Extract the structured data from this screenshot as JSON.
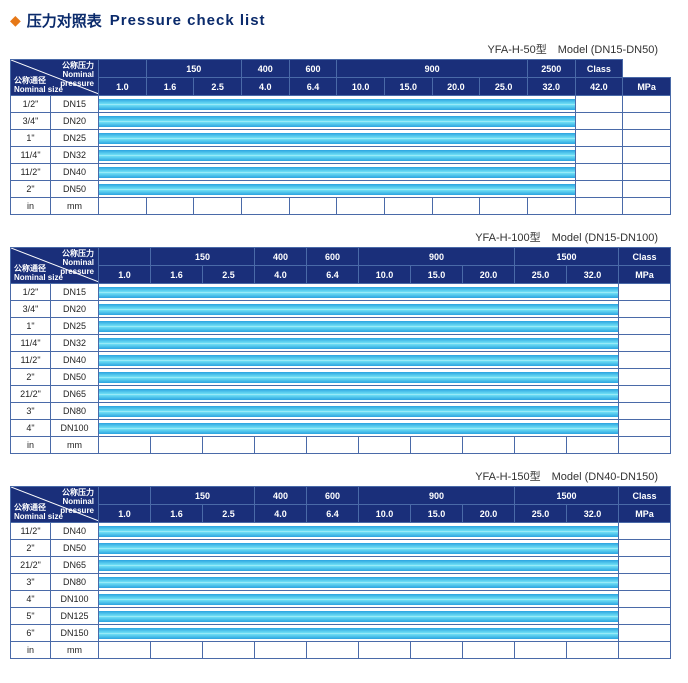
{
  "title": {
    "cn": "压力对照表",
    "en": "Pressure check list"
  },
  "colors": {
    "accent_diamond": "#e67817",
    "header_bg": "#1a2f7a",
    "border": "#4a6aa8",
    "bar_gradient": [
      "#2aa3e0",
      "#6fe0f5",
      "#b8f2fb",
      "#6fe0f5",
      "#2aa3e0"
    ],
    "title_color": "#0a2a6b"
  },
  "shared_labels": {
    "diag_top_cn": "公称压力",
    "diag_top_en1": "Nominal",
    "diag_top_en2": "pressure",
    "diag_left_cn": "公称通径",
    "diag_left_en": "Nominal size",
    "footer_in": "in",
    "footer_mm": "mm"
  },
  "tables": [
    {
      "caption": "YFA-H-50型　Model (DN15-DN50)",
      "class_headers": [
        "",
        "150",
        "",
        "400",
        "600",
        "900",
        "",
        "",
        "",
        "2500",
        "Class"
      ],
      "mpa_headers": [
        "1.0",
        "1.6",
        "2.5",
        "4.0",
        "6.4",
        "10.0",
        "15.0",
        "20.0",
        "25.0",
        "32.0",
        "42.0",
        "MPa"
      ],
      "rows": [
        {
          "in": "1/2\"",
          "dn": "DN15",
          "bar_span": 10,
          "tail": 1
        },
        {
          "in": "3/4\"",
          "dn": "DN20",
          "bar_span": 10,
          "tail": 1
        },
        {
          "in": "1\"",
          "dn": "DN25",
          "bar_span": 10,
          "tail": 1
        },
        {
          "in": "11/4\"",
          "dn": "DN32",
          "bar_span": 10,
          "tail": 1
        },
        {
          "in": "11/2\"",
          "dn": "DN40",
          "bar_span": 10,
          "tail": 1
        },
        {
          "in": "2\"",
          "dn": "DN50",
          "bar_span": 10,
          "tail": 1
        }
      ],
      "n_value_cols": 11
    },
    {
      "caption": "YFA-H-100型　Model (DN15-DN100)",
      "class_headers": [
        "",
        "150",
        "",
        "400",
        "600",
        "900",
        "",
        "",
        "1500",
        "",
        "Class"
      ],
      "mpa_headers": [
        "1.0",
        "1.6",
        "2.5",
        "4.0",
        "6.4",
        "10.0",
        "15.0",
        "20.0",
        "25.0",
        "32.0",
        "MPa"
      ],
      "rows": [
        {
          "in": "1/2\"",
          "dn": "DN15",
          "bar_span": 10,
          "tail": 0
        },
        {
          "in": "3/4\"",
          "dn": "DN20",
          "bar_span": 10,
          "tail": 0
        },
        {
          "in": "1\"",
          "dn": "DN25",
          "bar_span": 10,
          "tail": 0
        },
        {
          "in": "11/4\"",
          "dn": "DN32",
          "bar_span": 10,
          "tail": 0
        },
        {
          "in": "11/2\"",
          "dn": "DN40",
          "bar_span": 10,
          "tail": 0
        },
        {
          "in": "2\"",
          "dn": "DN50",
          "bar_span": 10,
          "tail": 0
        },
        {
          "in": "21/2\"",
          "dn": "DN65",
          "bar_span": 10,
          "tail": 0
        },
        {
          "in": "3\"",
          "dn": "DN80",
          "bar_span": 10,
          "tail": 0
        },
        {
          "in": "4\"",
          "dn": "DN100",
          "bar_span": 10,
          "tail": 0
        }
      ],
      "n_value_cols": 10
    },
    {
      "caption": "YFA-H-150型　Model (DN40-DN150)",
      "class_headers": [
        "",
        "150",
        "",
        "400",
        "600",
        "900",
        "",
        "",
        "1500",
        "",
        "Class"
      ],
      "mpa_headers": [
        "1.0",
        "1.6",
        "2.5",
        "4.0",
        "6.4",
        "10.0",
        "15.0",
        "20.0",
        "25.0",
        "32.0",
        "MPa"
      ],
      "rows": [
        {
          "in": "11/2\"",
          "dn": "DN40",
          "bar_span": 10,
          "tail": 0
        },
        {
          "in": "2\"",
          "dn": "DN50",
          "bar_span": 10,
          "tail": 0
        },
        {
          "in": "21/2\"",
          "dn": "DN65",
          "bar_span": 10,
          "tail": 0
        },
        {
          "in": "3\"",
          "dn": "DN80",
          "bar_span": 10,
          "tail": 0
        },
        {
          "in": "4\"",
          "dn": "DN100",
          "bar_span": 10,
          "tail": 0
        },
        {
          "in": "5\"",
          "dn": "DN125",
          "bar_span": 10,
          "tail": 0
        },
        {
          "in": "6\"",
          "dn": "DN150",
          "bar_span": 10,
          "tail": 0
        }
      ],
      "n_value_cols": 10
    }
  ]
}
